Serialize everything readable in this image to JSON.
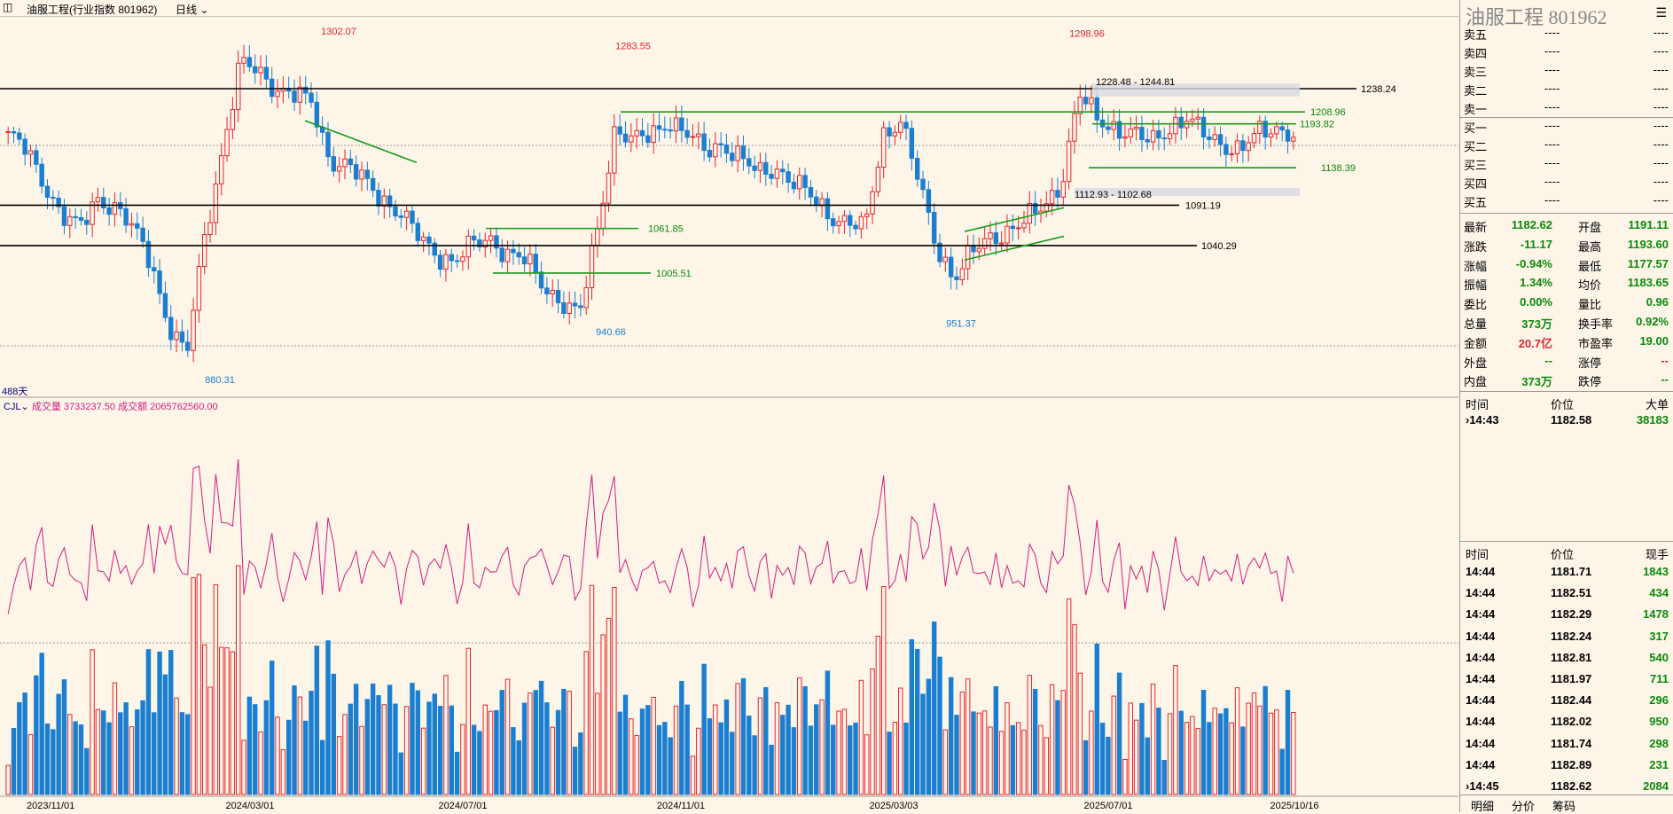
{
  "header": {
    "menu_icon": "list-icon",
    "title": "油服工程(行业指数  801962)",
    "period": "日线"
  },
  "chart_data": [
    {
      "type": "candlestick",
      "xlabel": "",
      "ylabel": "",
      "ylim": [
        860,
        1330
      ],
      "x_ticks": [
        "2023/11/01",
        "2024/03/01",
        "2024/07/01",
        "2024/11/01",
        "2025/03/03",
        "2025/07/01",
        "2025/10/16"
      ],
      "close_series_approx": [
        1180,
        1160,
        1120,
        1080,
        1060,
        1100,
        1090,
        1060,
        1020,
        940,
        900,
        1050,
        1160,
        1270,
        1260,
        1240,
        1230,
        1220,
        1150,
        1140,
        1120,
        1100,
        1080,
        1050,
        1030,
        1020,
        1040,
        1050,
        1030,
        1020,
        990,
        970,
        950,
        1060,
        1190,
        1170,
        1180,
        1200,
        1180,
        1160,
        1170,
        1150,
        1130,
        1140,
        1120,
        1100,
        1080,
        1070,
        1060,
        1180,
        1200,
        1120,
        1040,
        1000,
        1030,
        1050,
        1060,
        1070,
        1090,
        1120,
        1230,
        1200,
        1190,
        1180,
        1170,
        1190,
        1200,
        1180,
        1170,
        1160,
        1180,
        1190,
        1182
      ],
      "annotations": {
        "high_labels": [
          "1302.07",
          "1283.55",
          "1298.96"
        ],
        "low_labels": [
          "880.31",
          "940.66",
          "951.37"
        ],
        "levels": [
          "1238.24",
          "1208.96",
          "1193.82",
          "1138.39",
          "1091.19",
          "1061.85",
          "1040.29",
          "1005.51"
        ],
        "zones": [
          "1228.48 - 1244.81",
          "1112.93 - 1102.68"
        ],
        "bars_count": "488天"
      }
    },
    {
      "type": "bar",
      "indicator": "CJL",
      "labels": {
        "volume_label": "成交量 3733237.50",
        "amount_label": "成交额 2065762560.00"
      }
    }
  ],
  "panel": {
    "title": "油服工程  801962",
    "menu_icon": "list-icon",
    "orderbook": [
      {
        "label": "卖五",
        "price": "----",
        "vol": "----"
      },
      {
        "label": "卖四",
        "price": "----",
        "vol": "----"
      },
      {
        "label": "卖三",
        "price": "----",
        "vol": "----"
      },
      {
        "label": "卖二",
        "price": "----",
        "vol": "----"
      },
      {
        "label": "卖一",
        "price": "----",
        "vol": "----"
      },
      {
        "label": "买一",
        "price": "----",
        "vol": "----"
      },
      {
        "label": "买二",
        "price": "----",
        "vol": "----"
      },
      {
        "label": "买三",
        "price": "----",
        "vol": "----"
      },
      {
        "label": "买四",
        "price": "----",
        "vol": "----"
      },
      {
        "label": "买五",
        "price": "----",
        "vol": "----"
      }
    ],
    "stats": [
      {
        "l1": "最新",
        "v1": "1182.62",
        "c1": "g",
        "l2": "开盘",
        "v2": "1191.11",
        "c2": "g"
      },
      {
        "l1": "涨跌",
        "v1": "-11.17",
        "c1": "g",
        "l2": "最高",
        "v2": "1193.60",
        "c2": "g"
      },
      {
        "l1": "涨幅",
        "v1": "-0.94%",
        "c1": "g",
        "l2": "最低",
        "v2": "1177.57",
        "c2": "g"
      },
      {
        "l1": "振幅",
        "v1": "1.34%",
        "c1": "g",
        "l2": "均价",
        "v2": "1183.65",
        "c2": "g"
      },
      {
        "l1": "委比",
        "v1": "0.00%",
        "c1": "g",
        "l2": "量比",
        "v2": "0.96",
        "c2": "g"
      },
      {
        "l1": "总量",
        "v1": "373万",
        "c1": "g",
        "l2": "换手率",
        "v2": "0.92%",
        "c2": "g"
      },
      {
        "l1": "金额",
        "v1": "20.7亿",
        "c1": "r",
        "l2": "市盈率",
        "v2": "19.00",
        "c2": "g"
      },
      {
        "l1": "外盘",
        "v1": "--",
        "c1": "g",
        "l2": "涨停",
        "v2": "--",
        "c2": "r"
      },
      {
        "l1": "内盘",
        "v1": "373万",
        "c1": "g",
        "l2": "跌停",
        "v2": "--",
        "c2": "g"
      }
    ],
    "bigorder_header": {
      "time": "时间",
      "price": "价位",
      "vol": "大单"
    },
    "bigorder": [
      {
        "time": "14:43",
        "price": "1182.58",
        "vol": "38183"
      }
    ],
    "ticks_header": {
      "time": "时间",
      "price": "价位",
      "vol": "现手"
    },
    "ticks": [
      {
        "time": "14:44",
        "price": "1181.71",
        "vol": "1843"
      },
      {
        "time": "14:44",
        "price": "1182.51",
        "vol": "434"
      },
      {
        "time": "14:44",
        "price": "1182.29",
        "vol": "1478"
      },
      {
        "time": "14:44",
        "price": "1182.24",
        "vol": "317"
      },
      {
        "time": "14:44",
        "price": "1182.81",
        "vol": "540"
      },
      {
        "time": "14:44",
        "price": "1181.97",
        "vol": "711"
      },
      {
        "time": "14:44",
        "price": "1182.44",
        "vol": "296"
      },
      {
        "time": "14:44",
        "price": "1182.02",
        "vol": "950"
      },
      {
        "time": "14:44",
        "price": "1181.74",
        "vol": "298"
      },
      {
        "time": "14:44",
        "price": "1182.89",
        "vol": "231"
      },
      {
        "time": "14:45",
        "price": "1182.62",
        "vol": "2084"
      }
    ],
    "tabs": [
      "明细",
      "分价",
      "筹码"
    ]
  }
}
